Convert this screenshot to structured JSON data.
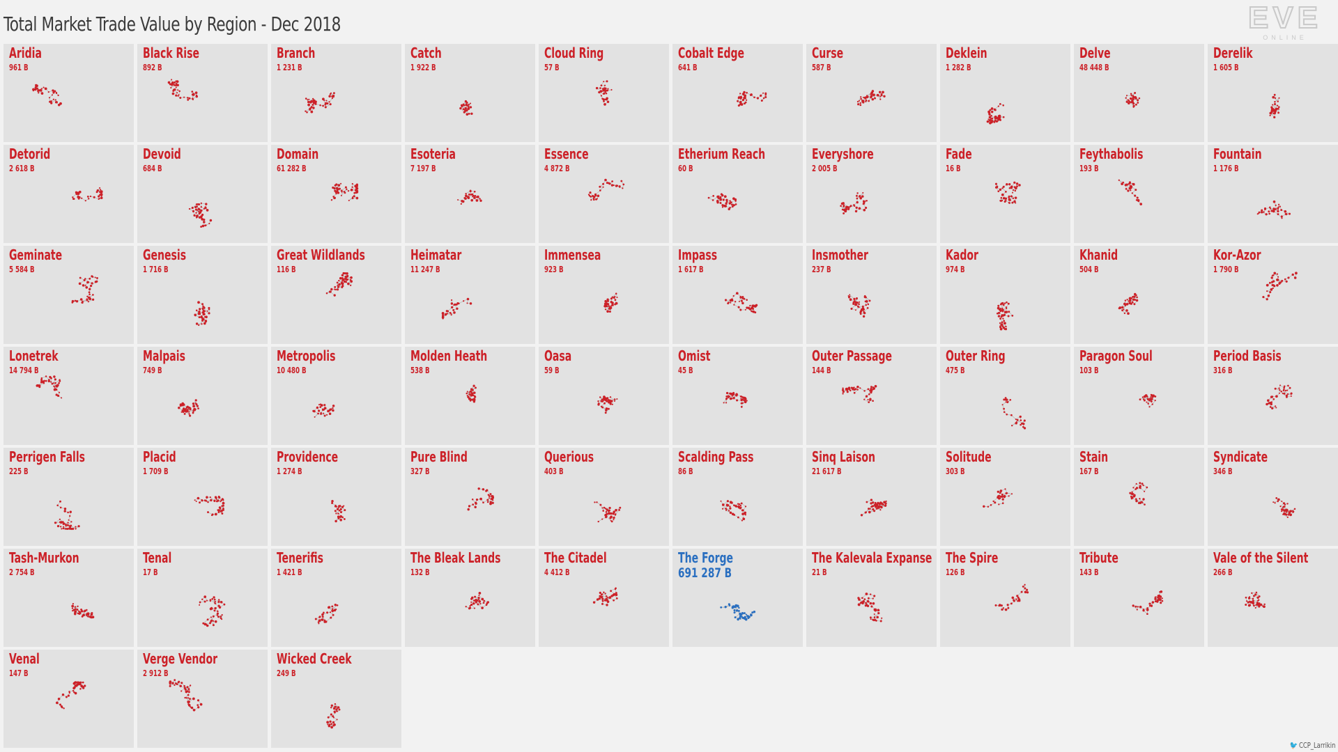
{
  "title": "Total Market Trade Value by Region - Dec 2018",
  "logo": {
    "main": "EVE",
    "sub": "ONLINE"
  },
  "credit": {
    "handle": "CCP_Larrikin",
    "icon": "twitter-bird-icon"
  },
  "colors": {
    "accent": "#cc2128",
    "highlight": "#2a6fc0",
    "panel": "#e2e2e2",
    "link": "#b8b8b8"
  },
  "chart_data": {
    "type": "small-multiples",
    "title": "Total Market Trade Value by Region - Dec 2018",
    "unit": "B",
    "highlight": "The Forge",
    "regions": [
      {
        "name": "Aridia",
        "value_label": "961 B",
        "value": 961
      },
      {
        "name": "Black Rise",
        "value_label": "892 B",
        "value": 892
      },
      {
        "name": "Branch",
        "value_label": "1 231 B",
        "value": 1231
      },
      {
        "name": "Catch",
        "value_label": "1 922 B",
        "value": 1922
      },
      {
        "name": "Cloud Ring",
        "value_label": "57 B",
        "value": 57
      },
      {
        "name": "Cobalt Edge",
        "value_label": "641 B",
        "value": 641
      },
      {
        "name": "Curse",
        "value_label": "587 B",
        "value": 587
      },
      {
        "name": "Deklein",
        "value_label": "1 282 B",
        "value": 1282
      },
      {
        "name": "Delve",
        "value_label": "48 448 B",
        "value": 48448
      },
      {
        "name": "Derelik",
        "value_label": "1 605 B",
        "value": 1605
      },
      {
        "name": "Detorid",
        "value_label": "2 618 B",
        "value": 2618
      },
      {
        "name": "Devoid",
        "value_label": "684 B",
        "value": 684
      },
      {
        "name": "Domain",
        "value_label": "61 282 B",
        "value": 61282
      },
      {
        "name": "Esoteria",
        "value_label": "7 197 B",
        "value": 7197
      },
      {
        "name": "Essence",
        "value_label": "4 872 B",
        "value": 4872
      },
      {
        "name": "Etherium Reach",
        "value_label": "60 B",
        "value": 60
      },
      {
        "name": "Everyshore",
        "value_label": "2 005 B",
        "value": 2005
      },
      {
        "name": "Fade",
        "value_label": "16 B",
        "value": 16
      },
      {
        "name": "Feythabolis",
        "value_label": "193 B",
        "value": 193
      },
      {
        "name": "Fountain",
        "value_label": "1 176 B",
        "value": 1176
      },
      {
        "name": "Geminate",
        "value_label": "5 584 B",
        "value": 5584
      },
      {
        "name": "Genesis",
        "value_label": "1 716 B",
        "value": 1716
      },
      {
        "name": "Great Wildlands",
        "value_label": "116 B",
        "value": 116
      },
      {
        "name": "Heimatar",
        "value_label": "11 247 B",
        "value": 11247
      },
      {
        "name": "Immensea",
        "value_label": "923 B",
        "value": 923
      },
      {
        "name": "Impass",
        "value_label": "1 617 B",
        "value": 1617
      },
      {
        "name": "Insmother",
        "value_label": "237 B",
        "value": 237
      },
      {
        "name": "Kador",
        "value_label": "974 B",
        "value": 974
      },
      {
        "name": "Khanid",
        "value_label": "504 B",
        "value": 504
      },
      {
        "name": "Kor-Azor",
        "value_label": "1 790 B",
        "value": 1790
      },
      {
        "name": "Lonetrek",
        "value_label": "14 794 B",
        "value": 14794
      },
      {
        "name": "Malpais",
        "value_label": "749 B",
        "value": 749
      },
      {
        "name": "Metropolis",
        "value_label": "10 480 B",
        "value": 10480
      },
      {
        "name": "Molden Heath",
        "value_label": "538 B",
        "value": 538
      },
      {
        "name": "Oasa",
        "value_label": "59 B",
        "value": 59
      },
      {
        "name": "Omist",
        "value_label": "45 B",
        "value": 45
      },
      {
        "name": "Outer Passage",
        "value_label": "144 B",
        "value": 144
      },
      {
        "name": "Outer Ring",
        "value_label": "475 B",
        "value": 475
      },
      {
        "name": "Paragon Soul",
        "value_label": "103 B",
        "value": 103
      },
      {
        "name": "Period Basis",
        "value_label": "316 B",
        "value": 316
      },
      {
        "name": "Perrigen Falls",
        "value_label": "225 B",
        "value": 225
      },
      {
        "name": "Placid",
        "value_label": "1 709 B",
        "value": 1709
      },
      {
        "name": "Providence",
        "value_label": "1 274 B",
        "value": 1274
      },
      {
        "name": "Pure Blind",
        "value_label": "327 B",
        "value": 327
      },
      {
        "name": "Querious",
        "value_label": "403 B",
        "value": 403
      },
      {
        "name": "Scalding Pass",
        "value_label": "86 B",
        "value": 86
      },
      {
        "name": "Sinq Laison",
        "value_label": "21 617 B",
        "value": 21617
      },
      {
        "name": "Solitude",
        "value_label": "303 B",
        "value": 303
      },
      {
        "name": "Stain",
        "value_label": "167 B",
        "value": 167
      },
      {
        "name": "Syndicate",
        "value_label": "346 B",
        "value": 346
      },
      {
        "name": "Tash-Murkon",
        "value_label": "2 754 B",
        "value": 2754
      },
      {
        "name": "Tenal",
        "value_label": "17 B",
        "value": 17
      },
      {
        "name": "Tenerifis",
        "value_label": "1 421 B",
        "value": 1421
      },
      {
        "name": "The Bleak Lands",
        "value_label": "132 B",
        "value": 132
      },
      {
        "name": "The Citadel",
        "value_label": "4 412 B",
        "value": 4412
      },
      {
        "name": "The Forge",
        "value_label": "691 287 B",
        "value": 691287
      },
      {
        "name": "The Kalevala Expanse",
        "value_label": "21 B",
        "value": 21
      },
      {
        "name": "The Spire",
        "value_label": "126 B",
        "value": 126
      },
      {
        "name": "Tribute",
        "value_label": "143 B",
        "value": 143
      },
      {
        "name": "Vale of the Silent",
        "value_label": "266 B",
        "value": 266
      },
      {
        "name": "Venal",
        "value_label": "147 B",
        "value": 147
      },
      {
        "name": "Verge Vendor",
        "value_label": "2 912 B",
        "value": 2912
      },
      {
        "name": "Wicked Creek",
        "value_label": "249 B",
        "value": 249
      }
    ]
  }
}
